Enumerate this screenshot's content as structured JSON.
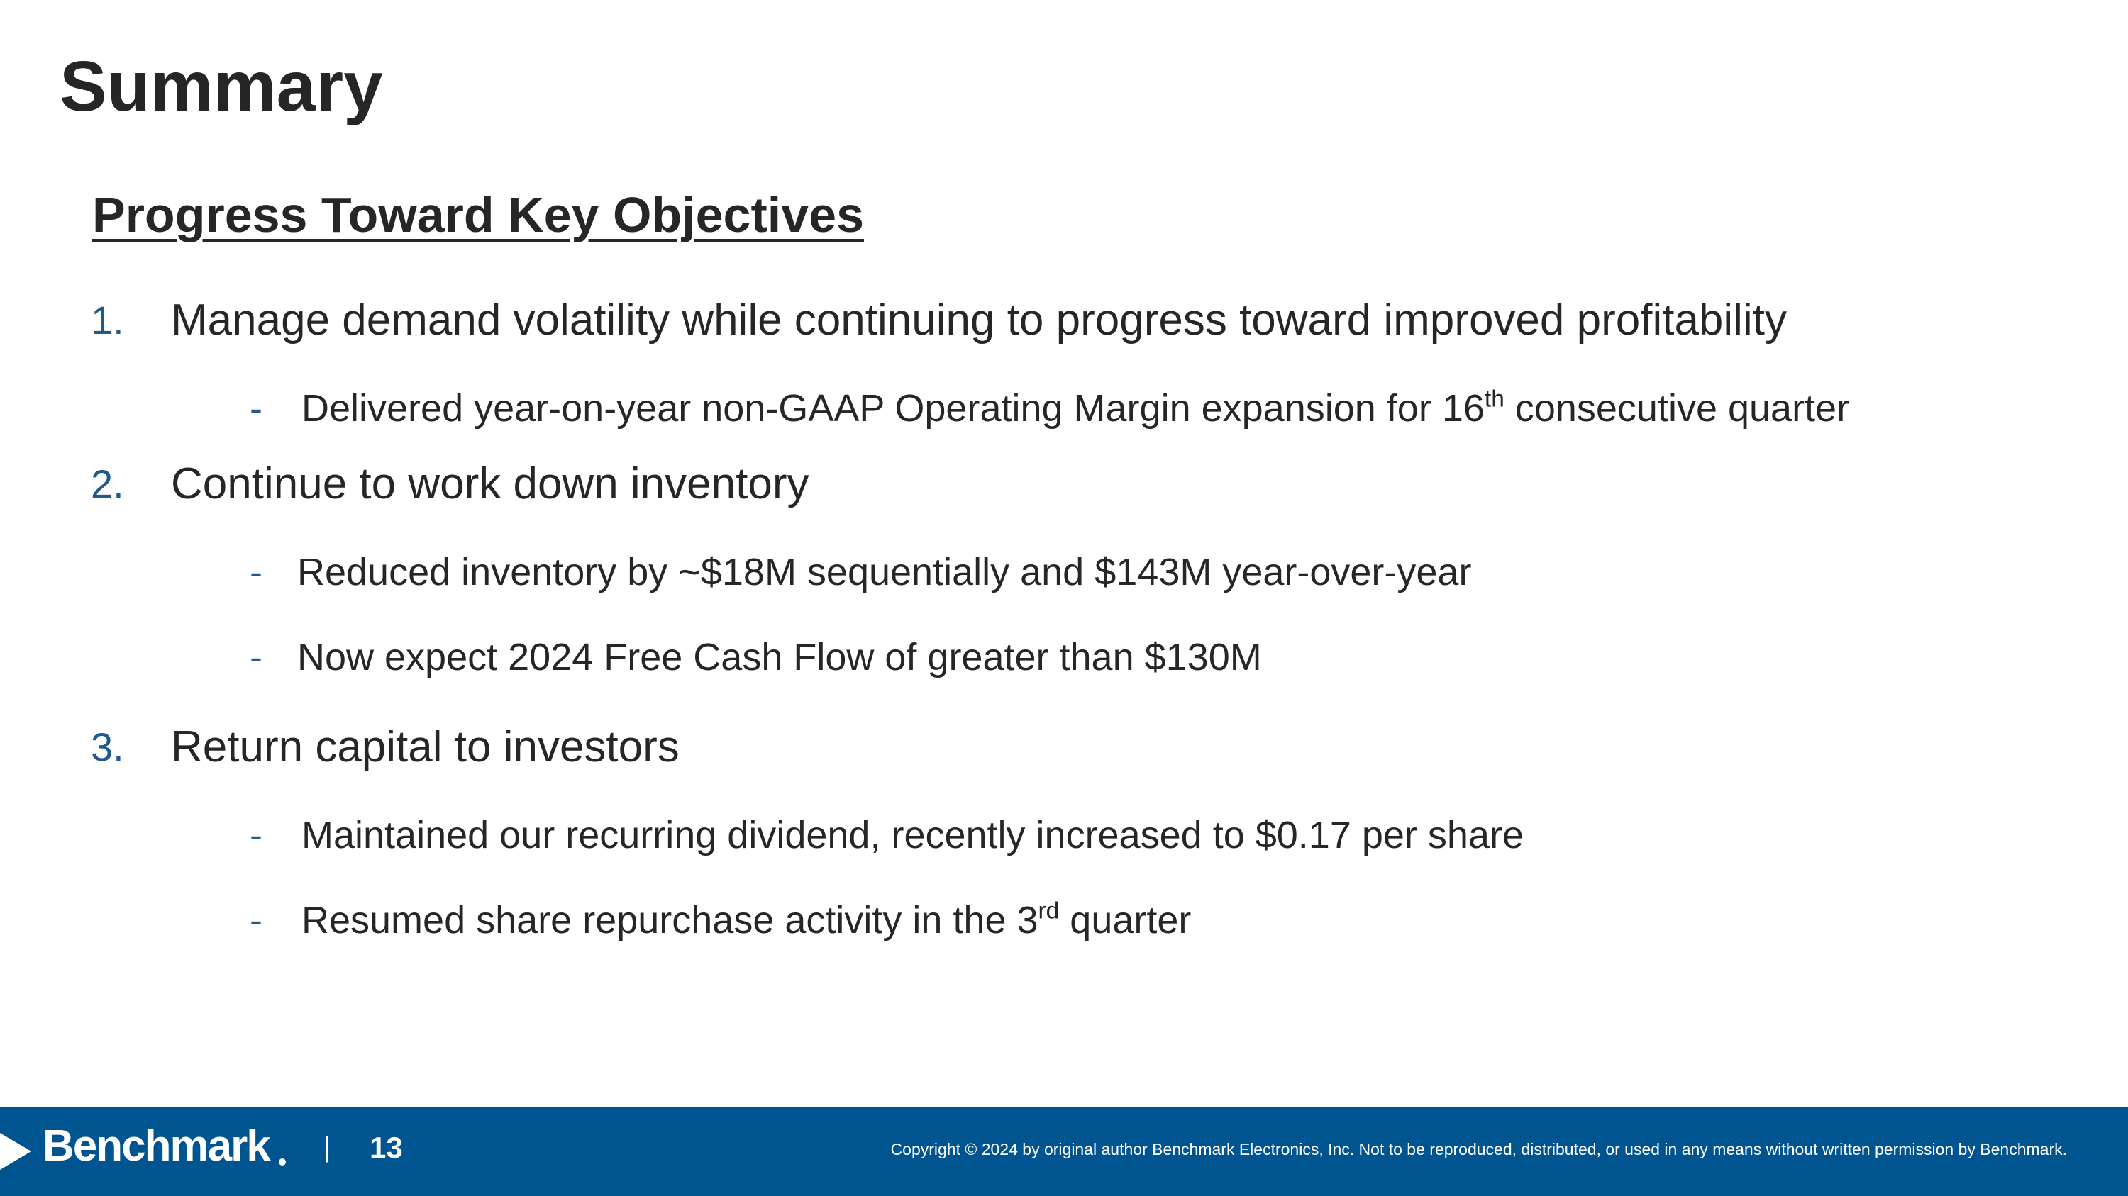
{
  "title": "Summary",
  "section_heading": "Progress Toward Key Objectives",
  "objectives": [
    {
      "number": "1.",
      "text": "Manage demand volatility while continuing to progress toward improved profitability",
      "bullets": [
        {
          "dash": "-",
          "before": "Delivered year-on-year non-GAAP Operating Margin expansion for 16",
          "sup": "th",
          "after": " consecutive quarter"
        }
      ]
    },
    {
      "number": "2.",
      "text": "Continue to work down inventory",
      "bullets": [
        {
          "dash": "-",
          "text": "Reduced inventory by ~$18M sequentially and $143M year-over-year"
        },
        {
          "dash": "-",
          "text": "Now expect 2024 Free Cash Flow of greater than $130M"
        }
      ]
    },
    {
      "number": "3.",
      "text": "Return capital to investors",
      "bullets": [
        {
          "dash": "-",
          "text": "Maintained our recurring dividend, recently increased to $0.17 per share"
        },
        {
          "dash": "-",
          "before": "Resumed share repurchase activity in the 3",
          "sup": "rd",
          "after": " quarter"
        }
      ]
    }
  ],
  "footer": {
    "logo_text": "Benchmark",
    "separator": "|",
    "page_number": "13",
    "copyright": "Copyright © 2024 by original author Benchmark Electronics, Inc. Not to be reproduced, distributed, or used in any means without written permission by Benchmark.",
    "background_color": "#005490",
    "accent_color": "#1e5a8e"
  }
}
